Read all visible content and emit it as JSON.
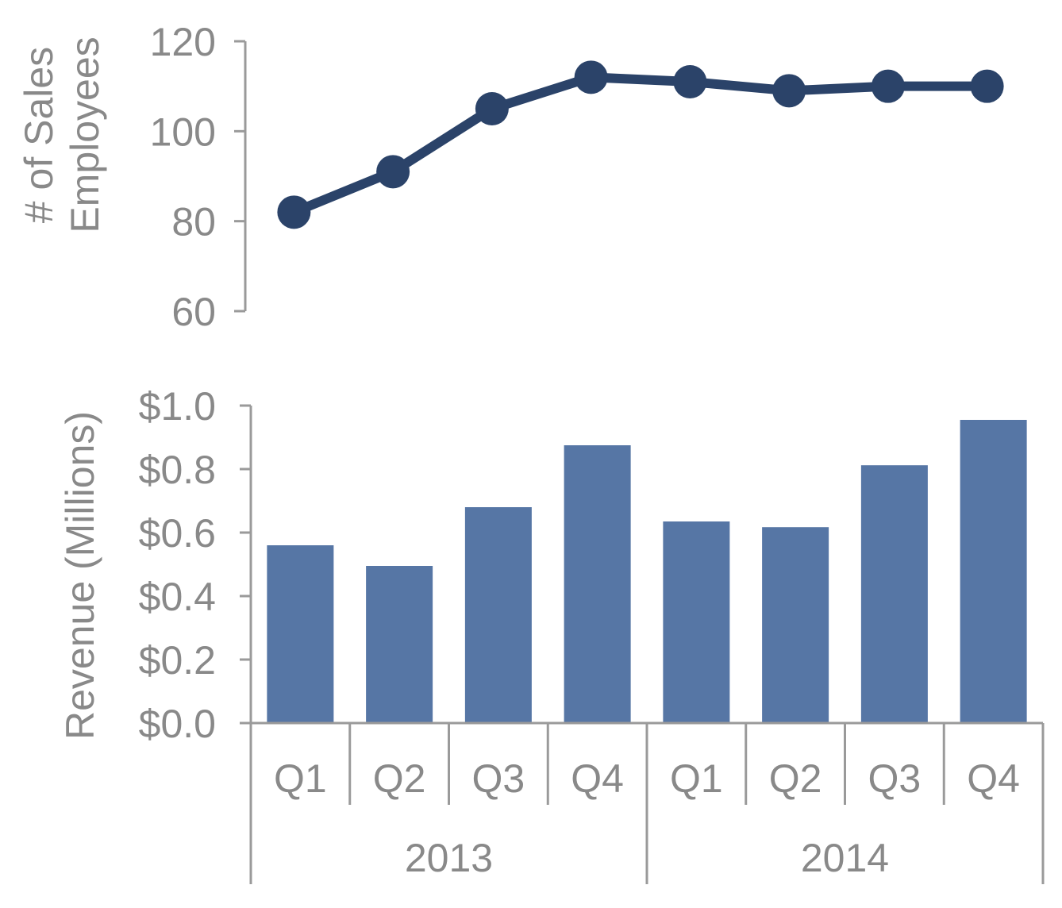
{
  "chart_data": [
    {
      "type": "line",
      "categories": [
        "Q1",
        "Q2",
        "Q3",
        "Q4",
        "Q1",
        "Q2",
        "Q3",
        "Q4"
      ],
      "groups": [
        "2013",
        "2014"
      ],
      "values": [
        82,
        91,
        105,
        112,
        111,
        109,
        110,
        110
      ],
      "ylabel_lines": [
        "# of Sales",
        "Employees"
      ],
      "ylim": [
        60,
        120
      ],
      "yticks": [
        60,
        80,
        100,
        120
      ],
      "ytick_labels": [
        "60",
        "80",
        "100",
        "120"
      ],
      "color": "#2b4369",
      "grid": false,
      "legend": "none"
    },
    {
      "type": "bar",
      "categories": [
        "Q1",
        "Q2",
        "Q3",
        "Q4",
        "Q1",
        "Q2",
        "Q3",
        "Q4"
      ],
      "groups": [
        "2013",
        "2014"
      ],
      "values": [
        0.56,
        0.495,
        0.68,
        0.875,
        0.635,
        0.617,
        0.812,
        0.955
      ],
      "ylabel": "Revenue (Millions)",
      "ylim": [
        0,
        1.0
      ],
      "yticks": [
        0,
        0.2,
        0.4,
        0.6,
        0.8,
        1.0
      ],
      "ytick_labels": [
        "$0.0",
        "$0.2",
        "$0.4",
        "$0.6",
        "$0.8",
        "$1.0"
      ],
      "color": "#5676a5",
      "grid": false,
      "legend": "none"
    }
  ]
}
